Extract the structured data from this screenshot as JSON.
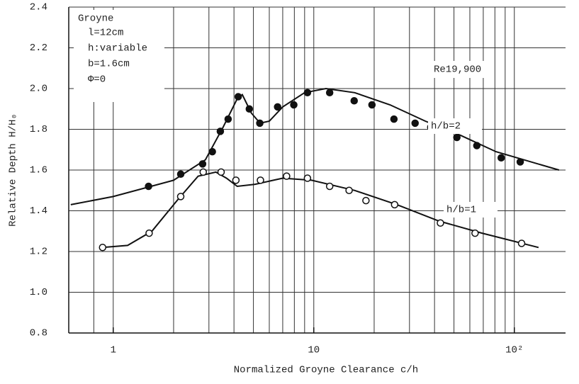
{
  "chart_data": {
    "type": "scatter",
    "x_label": "Normalized Groyne Clearance  c/h",
    "y_label": "Relative Depth  H/H₀",
    "xscale": "log",
    "xlim": [
      0.6,
      180
    ],
    "ylim": [
      0.8,
      2.4
    ],
    "xticks": [
      1,
      10,
      {
        "value": 100,
        "label": "10²"
      }
    ],
    "xgrid": [
      0.8,
      1,
      2,
      3,
      4,
      5,
      6,
      7,
      8,
      9,
      10,
      20,
      30,
      40,
      50,
      60,
      70,
      80,
      90,
      100
    ],
    "yticks": [
      0.8,
      {
        "value": 1,
        "label": "1.0"
      },
      1.2,
      1.4,
      1.6,
      1.8,
      {
        "value": 2,
        "label": "2.0"
      },
      2.2,
      2.4
    ],
    "grid": true,
    "annotations": [
      "Groyne",
      "l=12cm",
      "h:variable",
      "b=1.6cm",
      "Φ=0",
      "Re19,900"
    ],
    "series": [
      {
        "name": "h/b=2",
        "marker": "filled",
        "color": "#111",
        "x": [
          1.5,
          2.17,
          2.79,
          3.12,
          3.42,
          3.74,
          4.2,
          4.77,
          5.38,
          6.6,
          7.95,
          9.3,
          12,
          15.9,
          19.5,
          25.1,
          32,
          38.3,
          51.7,
          65,
          86,
          107
        ],
        "values": [
          1.52,
          1.58,
          1.63,
          1.69,
          1.79,
          1.85,
          1.96,
          1.9,
          1.83,
          1.91,
          1.92,
          1.98,
          1.98,
          1.94,
          1.92,
          1.85,
          1.83,
          1.81,
          1.76,
          1.72,
          1.66,
          1.64
        ],
        "curve_x": [
          0.614,
          1,
          2,
          2.88,
          3.53,
          4.15,
          4.4,
          4.88,
          5.4,
          6,
          7,
          9,
          11.5,
          16,
          24,
          36,
          54,
          81,
          167
        ],
        "curve_y": [
          1.43,
          1.47,
          1.55,
          1.65,
          1.81,
          1.95,
          1.97,
          1.88,
          1.83,
          1.84,
          1.91,
          1.98,
          2.0,
          1.98,
          1.92,
          1.84,
          1.77,
          1.69,
          1.6
        ]
      },
      {
        "name": "h/b=1",
        "marker": "open",
        "color": "#111",
        "x": [
          0.885,
          1.51,
          2.17,
          2.81,
          3.45,
          4.09,
          5.42,
          7.32,
          9.3,
          12,
          15,
          18.2,
          25.3,
          42.8,
          63.7,
          108.7
        ],
        "values": [
          1.22,
          1.29,
          1.47,
          1.59,
          1.59,
          1.55,
          1.55,
          1.57,
          1.56,
          1.52,
          1.5,
          1.45,
          1.43,
          1.34,
          1.29,
          1.24
        ],
        "curve_x": [
          0.885,
          1.18,
          1.56,
          2.08,
          2.65,
          3.25,
          3.67,
          4.15,
          5.1,
          7,
          9.75,
          16,
          26,
          42,
          69,
          132
        ],
        "curve_y": [
          1.22,
          1.23,
          1.3,
          1.45,
          1.57,
          1.59,
          1.56,
          1.52,
          1.53,
          1.56,
          1.55,
          1.5,
          1.43,
          1.35,
          1.29,
          1.22
        ]
      }
    ]
  }
}
